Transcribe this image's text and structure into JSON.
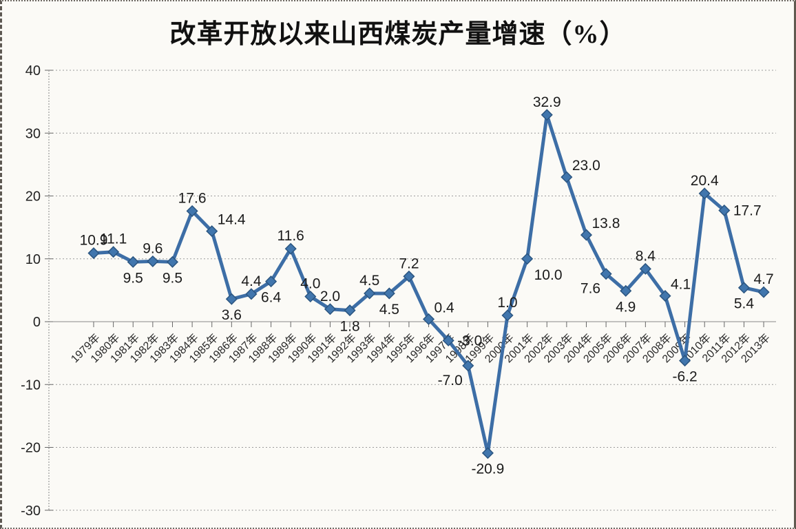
{
  "page": {
    "background_color": "#fbfaf6"
  },
  "chart_data": {
    "type": "line",
    "title": "改革开放以来山西煤炭产量增速（%）",
    "xlabel": "",
    "ylabel": "",
    "categories": [
      "1979年",
      "1980年",
      "1981年",
      "1982年",
      "1983年",
      "1984年",
      "1985年",
      "1986年",
      "1987年",
      "1988年",
      "1989年",
      "1990年",
      "1991年",
      "1992年",
      "1993年",
      "1994年",
      "1995年",
      "1996年",
      "1997年",
      "1998年",
      "1999年",
      "2000年",
      "2001年",
      "2002年",
      "2003年",
      "2004年",
      "2005年",
      "2006年",
      "2007年",
      "2008年",
      "2009年",
      "2010年",
      "2011年",
      "2012年",
      "2013年"
    ],
    "values": [
      10.9,
      11.1,
      9.5,
      9.6,
      9.5,
      17.6,
      14.4,
      3.6,
      4.4,
      6.4,
      11.6,
      4.0,
      2.0,
      1.8,
      4.5,
      4.5,
      7.2,
      0.4,
      -3.0,
      -7.0,
      -20.9,
      1.0,
      10.0,
      32.9,
      23.0,
      13.8,
      7.6,
      4.9,
      8.4,
      4.1,
      -6.2,
      20.4,
      17.7,
      5.4,
      4.7
    ],
    "point_labels": [
      "10.9",
      "11.1",
      "9.5",
      "9.6",
      "9.5",
      "17.6",
      "14.4",
      "3.6",
      "4.4",
      "6.4",
      "11.6",
      "4.0",
      "2.0",
      "1.8",
      "4.5",
      "4.5",
      "7.2",
      "0.4",
      "-3.0",
      "-7.0",
      "-20.9",
      "1.0",
      "10.0",
      "32.9",
      "23.0",
      "13.8",
      "7.6",
      "4.9",
      "8.4",
      "4.1",
      "-6.2",
      "20.4",
      "17.7",
      "5.4",
      "4.7"
    ],
    "label_positions": [
      "above",
      "above",
      "below",
      "above",
      "below",
      "above",
      "above-right",
      "below",
      "above",
      "below",
      "above",
      "above",
      "above",
      "below",
      "above",
      "below",
      "above",
      "above-right",
      "right",
      "below-left",
      "below",
      "above",
      "below-right",
      "above",
      "above-right",
      "above-right",
      "below-left",
      "below",
      "above",
      "above-right",
      "below",
      "above",
      "right",
      "below",
      "above"
    ],
    "y_ticks": [
      "40",
      "30",
      "20",
      "10",
      "0",
      "-10",
      "-20",
      "-30"
    ],
    "ylim": [
      -30,
      40
    ],
    "grid": "horizontal-dotted",
    "legend": "none",
    "line_color": "#3d6ea6",
    "marker": "diamond",
    "marker_fill": "#4176ad",
    "marker_stroke": "#2b5580",
    "grid_color": "#9a9a9a",
    "axis_color": "#888888"
  }
}
